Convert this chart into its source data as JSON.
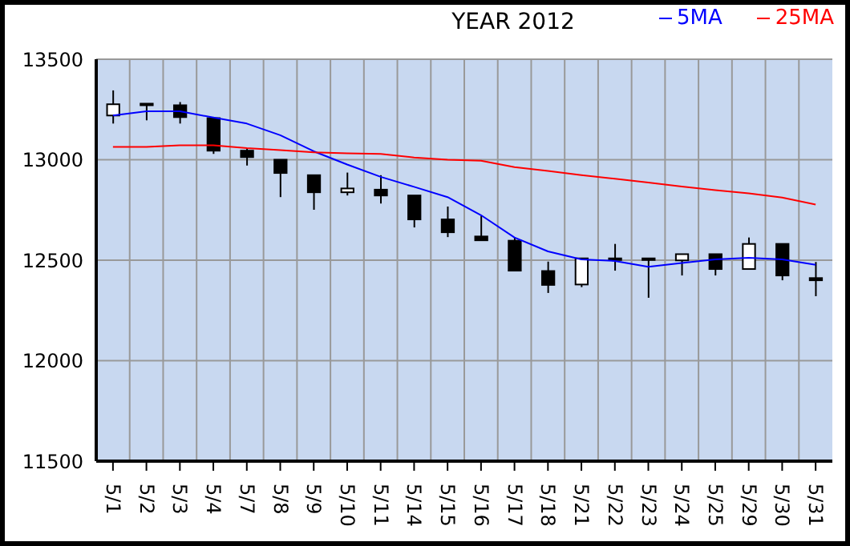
{
  "chart_data": {
    "type": "candlestick",
    "title": "YEAR 2012",
    "categories": [
      "5/1",
      "5/2",
      "5/3",
      "5/4",
      "5/7",
      "5/8",
      "5/9",
      "5/10",
      "5/11",
      "5/14",
      "5/15",
      "5/16",
      "5/17",
      "5/18",
      "5/21",
      "5/22",
      "5/23",
      "5/24",
      "5/25",
      "5/29",
      "5/30",
      "5/31"
    ],
    "ohlc": [
      [
        13220,
        13345,
        13180,
        13276
      ],
      [
        13279,
        13279,
        13196,
        13279
      ],
      [
        13271,
        13287,
        13180,
        13212
      ],
      [
        13207,
        13207,
        13029,
        13045
      ],
      [
        13045,
        13056,
        12971,
        13013
      ],
      [
        13000,
        13000,
        12814,
        12934
      ],
      [
        12923,
        12923,
        12751,
        12838
      ],
      [
        12838,
        12936,
        12822,
        12857
      ],
      [
        12851,
        12923,
        12782,
        12822
      ],
      [
        12822,
        12822,
        12663,
        12703
      ],
      [
        12703,
        12767,
        12615,
        12639
      ],
      [
        12618,
        12721,
        12599,
        12599
      ],
      [
        12597,
        12613,
        12448,
        12448
      ],
      [
        12446,
        12493,
        12337,
        12377
      ],
      [
        12379,
        12509,
        12366,
        12509
      ],
      [
        12509,
        12581,
        12448,
        12506
      ],
      [
        12509,
        12509,
        12313,
        12504
      ],
      [
        12499,
        12530,
        12424,
        12530
      ],
      [
        12530,
        12530,
        12424,
        12456
      ],
      [
        12456,
        12613,
        12456,
        12581
      ],
      [
        12581,
        12581,
        12400,
        12424
      ],
      [
        12411,
        12491,
        12321,
        12400
      ]
    ],
    "series": [
      {
        "name": "5MA",
        "type": "line",
        "color": "#0000ff",
        "values": [
          13220,
          13241,
          13241,
          13210,
          13180,
          13122,
          13042,
          12976,
          12915,
          12865,
          12814,
          12724,
          12613,
          12544,
          12504,
          12496,
          12467,
          12486,
          12504,
          12512,
          12504,
          12477
        ]
      },
      {
        "name": "25MA",
        "type": "line",
        "color": "#ff0000",
        "values": [
          13064,
          13064,
          13072,
          13072,
          13058,
          13048,
          13037,
          13032,
          13029,
          13011,
          13000,
          12995,
          12963,
          12944,
          12923,
          12905,
          12886,
          12867,
          12849,
          12833,
          12812,
          12777
        ]
      }
    ],
    "ylim": [
      11500,
      13500
    ],
    "yticks": [
      11500,
      12000,
      12500,
      13000,
      13500
    ],
    "grid": true,
    "legend": "top right",
    "marker": "none",
    "line_style": "solid"
  }
}
